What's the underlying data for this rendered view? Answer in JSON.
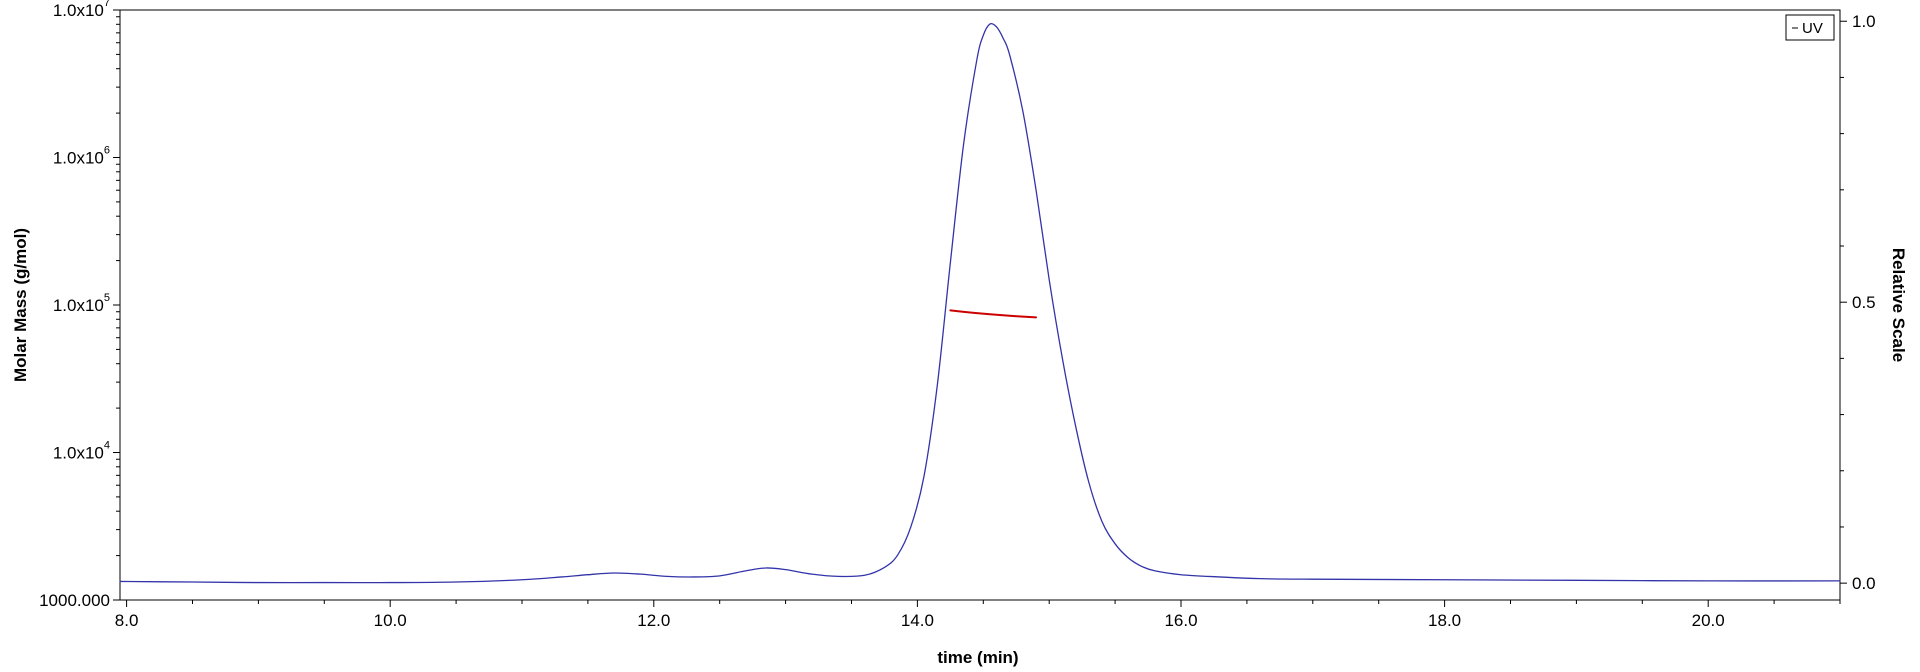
{
  "chart_data": {
    "type": "line",
    "title": "",
    "xlabel": "time (min)",
    "ylabel_left": "Molar Mass (g/mol)",
    "ylabel_right": "Relative Scale",
    "xlim": [
      7.95,
      21.0
    ],
    "ylim_left": [
      1000,
      10000000
    ],
    "ylim_left_scale": "log",
    "ylim_right": [
      -0.03,
      1.02
    ],
    "x_ticks": [
      {
        "value": 8.0,
        "label": "8.0"
      },
      {
        "value": 10.0,
        "label": "10.0"
      },
      {
        "value": 12.0,
        "label": "12.0"
      },
      {
        "value": 14.0,
        "label": "14.0"
      },
      {
        "value": 16.0,
        "label": "16.0"
      },
      {
        "value": 18.0,
        "label": "18.0"
      },
      {
        "value": 20.0,
        "label": "20.0"
      }
    ],
    "y_left_ticks": [
      {
        "value": 10000000,
        "mantissa": "1.0x10",
        "exponent": "7"
      },
      {
        "value": 1000000,
        "mantissa": "1.0x10",
        "exponent": "6"
      },
      {
        "value": 100000,
        "mantissa": "1.0x10",
        "exponent": "5"
      },
      {
        "value": 10000,
        "mantissa": "1.0x10",
        "exponent": "4"
      },
      {
        "value": 1000,
        "mantissa": "1000.000",
        "exponent": ""
      }
    ],
    "y_right_ticks": [
      {
        "value": 1.0,
        "label": "1.0"
      },
      {
        "value": 0.5,
        "label": "0.5"
      },
      {
        "value": 0.0,
        "label": "0.0"
      }
    ],
    "legend": {
      "placement": "top-right",
      "entries": [
        "UV"
      ]
    },
    "grid": false,
    "series": [
      {
        "name": "UV",
        "axis": "right",
        "color": "#3333aa",
        "x": [
          7.95,
          8.5,
          9.0,
          9.5,
          10.0,
          10.5,
          11.0,
          11.3,
          11.5,
          11.7,
          11.9,
          12.1,
          12.3,
          12.5,
          12.7,
          12.85,
          13.0,
          13.2,
          13.4,
          13.6,
          13.75,
          13.85,
          13.95,
          14.05,
          14.15,
          14.25,
          14.35,
          14.45,
          14.5,
          14.55,
          14.6,
          14.65,
          14.7,
          14.8,
          14.9,
          15.0,
          15.1,
          15.2,
          15.3,
          15.4,
          15.5,
          15.6,
          15.7,
          15.8,
          16.0,
          16.3,
          16.6,
          17.0,
          18.0,
          19.0,
          20.0,
          21.0
        ],
        "y": [
          0.003,
          0.002,
          0.001,
          0.001,
          0.001,
          0.002,
          0.006,
          0.011,
          0.015,
          0.018,
          0.016,
          0.012,
          0.011,
          0.013,
          0.022,
          0.027,
          0.024,
          0.016,
          0.012,
          0.014,
          0.028,
          0.05,
          0.1,
          0.19,
          0.35,
          0.57,
          0.78,
          0.93,
          0.975,
          0.995,
          0.99,
          0.97,
          0.94,
          0.84,
          0.7,
          0.54,
          0.4,
          0.28,
          0.18,
          0.11,
          0.07,
          0.045,
          0.03,
          0.022,
          0.015,
          0.011,
          0.008,
          0.007,
          0.006,
          0.005,
          0.004,
          0.004
        ]
      },
      {
        "name": "Molar Mass",
        "axis": "left",
        "color": "#cc0000",
        "x": [
          14.25,
          14.4,
          14.55,
          14.7,
          14.85,
          14.9
        ],
        "y": [
          92000,
          89000,
          86500,
          84500,
          83000,
          82500
        ]
      }
    ]
  }
}
